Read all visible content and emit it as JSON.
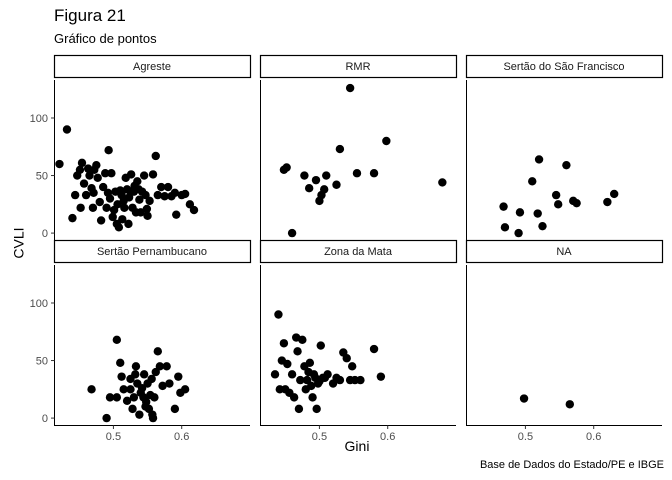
{
  "title": "Figura 21",
  "subtitle": "Gráfico de pontos",
  "caption": "Base de Dados do Estado/PE e IBGE",
  "chart_data": {
    "type": "scatter",
    "xlabel": "Gini",
    "ylabel": "CVLI",
    "xlim": [
      0.413,
      0.7
    ],
    "ylim": [
      -6,
      133
    ],
    "x_ticks": [
      0.5,
      0.6
    ],
    "y_ticks": [
      0,
      50,
      100
    ],
    "x_tick_labels": [
      "0.5",
      "0.6"
    ],
    "y_tick_labels": [
      "0",
      "50",
      "100"
    ],
    "grid": false,
    "point_color": "#000000",
    "panels": [
      {
        "name": "Agreste",
        "points": [
          [
            0.421,
            60
          ],
          [
            0.432,
            90
          ],
          [
            0.44,
            13
          ],
          [
            0.444,
            33
          ],
          [
            0.447,
            50
          ],
          [
            0.451,
            55
          ],
          [
            0.452,
            22
          ],
          [
            0.454,
            61
          ],
          [
            0.457,
            43
          ],
          [
            0.46,
            33
          ],
          [
            0.463,
            56
          ],
          [
            0.465,
            50
          ],
          [
            0.468,
            39
          ],
          [
            0.47,
            22
          ],
          [
            0.471,
            35
          ],
          [
            0.472,
            55
          ],
          [
            0.475,
            59
          ],
          [
            0.477,
            48
          ],
          [
            0.48,
            27
          ],
          [
            0.482,
            11
          ],
          [
            0.485,
            40
          ],
          [
            0.488,
            52
          ],
          [
            0.49,
            22
          ],
          [
            0.492,
            35
          ],
          [
            0.493,
            72
          ],
          [
            0.495,
            30
          ],
          [
            0.497,
            52
          ],
          [
            0.499,
            14
          ],
          [
            0.501,
            20
          ],
          [
            0.503,
            36
          ],
          [
            0.505,
            8
          ],
          [
            0.506,
            25
          ],
          [
            0.508,
            5
          ],
          [
            0.51,
            37
          ],
          [
            0.512,
            33
          ],
          [
            0.513,
            12
          ],
          [
            0.515,
            28
          ],
          [
            0.516,
            22
          ],
          [
            0.518,
            48
          ],
          [
            0.52,
            38
          ],
          [
            0.522,
            8
          ],
          [
            0.523,
            31
          ],
          [
            0.525,
            36
          ],
          [
            0.526,
            51
          ],
          [
            0.528,
            22
          ],
          [
            0.53,
            36
          ],
          [
            0.531,
            41
          ],
          [
            0.533,
            18
          ],
          [
            0.535,
            45
          ],
          [
            0.537,
            38
          ],
          [
            0.538,
            29
          ],
          [
            0.54,
            18
          ],
          [
            0.542,
            36
          ],
          [
            0.545,
            50
          ],
          [
            0.547,
            33
          ],
          [
            0.549,
            21
          ],
          [
            0.55,
            15
          ],
          [
            0.553,
            28
          ],
          [
            0.558,
            51
          ],
          [
            0.562,
            67
          ],
          [
            0.565,
            33
          ],
          [
            0.57,
            40
          ],
          [
            0.575,
            32
          ],
          [
            0.58,
            40
          ],
          [
            0.585,
            32
          ],
          [
            0.59,
            35
          ],
          [
            0.592,
            16
          ],
          [
            0.6,
            33
          ],
          [
            0.605,
            34
          ],
          [
            0.612,
            25
          ],
          [
            0.618,
            20
          ]
        ]
      },
      {
        "name": "RMR",
        "points": [
          [
            0.448,
            55
          ],
          [
            0.452,
            57
          ],
          [
            0.46,
            0
          ],
          [
            0.478,
            50
          ],
          [
            0.485,
            39
          ],
          [
            0.495,
            46
          ],
          [
            0.5,
            28
          ],
          [
            0.503,
            33
          ],
          [
            0.507,
            38
          ],
          [
            0.51,
            50
          ],
          [
            0.525,
            42
          ],
          [
            0.53,
            73
          ],
          [
            0.545,
            126
          ],
          [
            0.555,
            52
          ],
          [
            0.58,
            52
          ],
          [
            0.598,
            80
          ],
          [
            0.68,
            44
          ]
        ]
      },
      {
        "name": "Sertão do São Francisco",
        "points": [
          [
            0.468,
            23
          ],
          [
            0.47,
            5
          ],
          [
            0.49,
            0
          ],
          [
            0.492,
            18
          ],
          [
            0.51,
            45
          ],
          [
            0.518,
            17
          ],
          [
            0.52,
            64
          ],
          [
            0.525,
            6
          ],
          [
            0.545,
            33
          ],
          [
            0.548,
            25
          ],
          [
            0.56,
            59
          ],
          [
            0.57,
            28
          ],
          [
            0.575,
            26
          ],
          [
            0.62,
            27
          ],
          [
            0.63,
            34
          ]
        ]
      },
      {
        "name": "Sertão Pernambucano",
        "points": [
          [
            0.468,
            25
          ],
          [
            0.49,
            0
          ],
          [
            0.495,
            18
          ],
          [
            0.505,
            18
          ],
          [
            0.505,
            68
          ],
          [
            0.51,
            48
          ],
          [
            0.512,
            36
          ],
          [
            0.52,
            15
          ],
          [
            0.525,
            25
          ],
          [
            0.528,
            8
          ],
          [
            0.53,
            18
          ],
          [
            0.532,
            38
          ],
          [
            0.535,
            30
          ],
          [
            0.538,
            3
          ],
          [
            0.54,
            22
          ],
          [
            0.542,
            26
          ],
          [
            0.544,
            18
          ],
          [
            0.545,
            38
          ],
          [
            0.547,
            10
          ],
          [
            0.55,
            30
          ],
          [
            0.552,
            8
          ],
          [
            0.554,
            20
          ],
          [
            0.556,
            34
          ],
          [
            0.558,
            0
          ],
          [
            0.56,
            18
          ],
          [
            0.562,
            40
          ],
          [
            0.565,
            58
          ],
          [
            0.568,
            45
          ],
          [
            0.572,
            28
          ],
          [
            0.578,
            45
          ],
          [
            0.582,
            30
          ],
          [
            0.59,
            8
          ],
          [
            0.595,
            36
          ],
          [
            0.598,
            22
          ],
          [
            0.605,
            25
          ],
          [
            0.557,
            3
          ],
          [
            0.548,
            14
          ],
          [
            0.533,
            45
          ],
          [
            0.525,
            34
          ],
          [
            0.515,
            25
          ]
        ]
      },
      {
        "name": "Zona da Mata",
        "points": [
          [
            0.435,
            38
          ],
          [
            0.44,
            90
          ],
          [
            0.442,
            25
          ],
          [
            0.445,
            50
          ],
          [
            0.448,
            65
          ],
          [
            0.45,
            25
          ],
          [
            0.453,
            47
          ],
          [
            0.456,
            22
          ],
          [
            0.46,
            38
          ],
          [
            0.463,
            18
          ],
          [
            0.466,
            70
          ],
          [
            0.468,
            58
          ],
          [
            0.47,
            8
          ],
          [
            0.472,
            33
          ],
          [
            0.475,
            68
          ],
          [
            0.478,
            45
          ],
          [
            0.48,
            25
          ],
          [
            0.482,
            33
          ],
          [
            0.484,
            40
          ],
          [
            0.486,
            48
          ],
          [
            0.488,
            28
          ],
          [
            0.49,
            18
          ],
          [
            0.492,
            38
          ],
          [
            0.494,
            35
          ],
          [
            0.496,
            8
          ],
          [
            0.498,
            30
          ],
          [
            0.5,
            32
          ],
          [
            0.502,
            63
          ],
          [
            0.505,
            35
          ],
          [
            0.508,
            35
          ],
          [
            0.512,
            38
          ],
          [
            0.52,
            30
          ],
          [
            0.525,
            35
          ],
          [
            0.53,
            33
          ],
          [
            0.535,
            57
          ],
          [
            0.54,
            52
          ],
          [
            0.545,
            33
          ],
          [
            0.548,
            45
          ],
          [
            0.552,
            33
          ],
          [
            0.56,
            33
          ],
          [
            0.58,
            60
          ],
          [
            0.59,
            36
          ]
        ]
      },
      {
        "name": "NA",
        "points": [
          [
            0.498,
            17
          ],
          [
            0.565,
            12
          ]
        ]
      }
    ]
  }
}
